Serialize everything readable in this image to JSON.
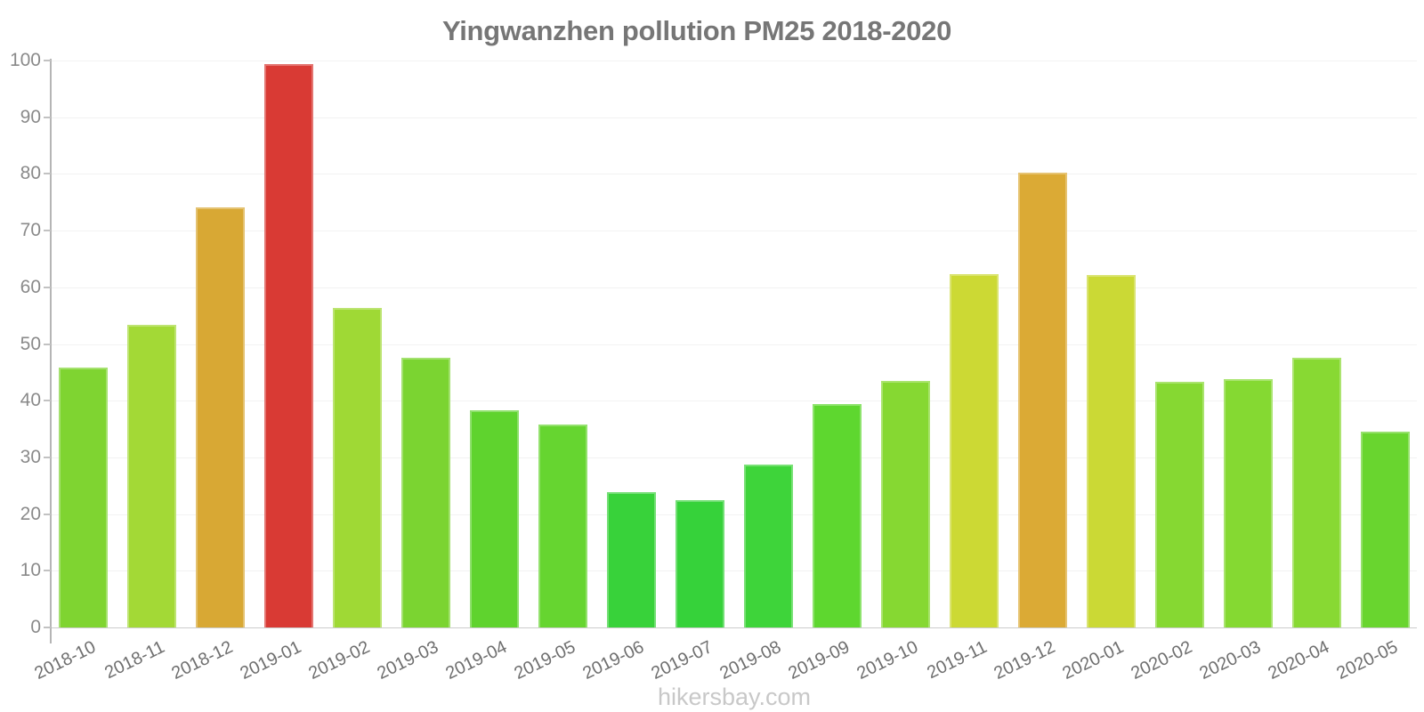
{
  "page": {
    "footer_label": "hikersbay.com"
  },
  "chart_data": {
    "type": "bar",
    "title": "Yingwanzhen pollution PM25 2018-2020",
    "xlabel": "",
    "ylabel": "",
    "categories": [
      "2018-10",
      "2018-11",
      "2018-12",
      "2019-01",
      "2019-02",
      "2019-03",
      "2019-04",
      "2019-05",
      "2019-06",
      "2019-07",
      "2019-08",
      "2019-09",
      "2019-10",
      "2019-11",
      "2019-12",
      "2020-01",
      "2020-02",
      "2020-03",
      "2020-04",
      "2020-05"
    ],
    "values": [
      45.8,
      53.3,
      74.1,
      99.4,
      56.4,
      47.6,
      38.3,
      35.8,
      23.9,
      22.4,
      28.8,
      39.4,
      43.5,
      62.4,
      80.2,
      62.1,
      43.3,
      43.8,
      47.5,
      34.5
    ],
    "bar_colors": [
      "#7fd431",
      "#a3d936",
      "#d8a834",
      "#d93a34",
      "#9fd935",
      "#7bd431",
      "#5fd32e",
      "#66d530",
      "#38d23a",
      "#36d23a",
      "#3ed43a",
      "#5ed72f",
      "#86d832",
      "#ccd934",
      "#dbaa35",
      "#cbd935",
      "#86d832",
      "#85d932",
      "#88d933",
      "#69d52f"
    ],
    "ylim": [
      0,
      100
    ],
    "ytick_step": 10,
    "yticks": [
      0,
      10,
      20,
      30,
      40,
      50,
      60,
      70,
      80,
      90,
      100
    ],
    "grid": true,
    "legend": false,
    "colors": {
      "background": "#ffffff",
      "axis": "#b5b5b5",
      "grid": "#f2f2f2",
      "tick": "#c2c2c2",
      "y_label": "#8a8a8a",
      "x_label": "#6f6f6f",
      "title": "#767676",
      "footer": "#c8c8c8"
    }
  }
}
